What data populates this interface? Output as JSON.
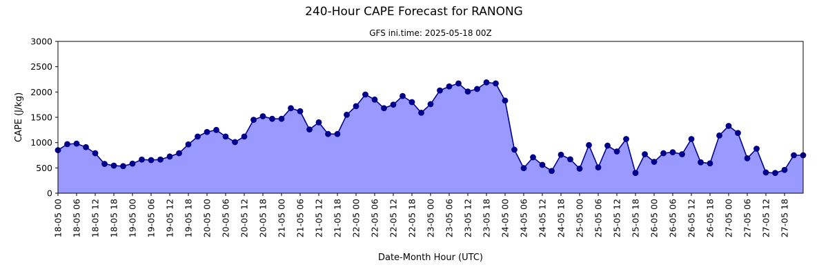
{
  "chart_data": {
    "type": "area",
    "title": "240-Hour CAPE Forecast for RANONG",
    "subtitle": "GFS ini.time: 2025-05-18 00Z",
    "xlabel": "Date-Month Hour (UTC)",
    "ylabel": "CAPE (J/kg)",
    "ylim": [
      0,
      3000
    ],
    "yticks": [
      0,
      500,
      1000,
      1500,
      2000,
      2500,
      3000
    ],
    "grid": false,
    "legend": "none",
    "colors": {
      "line": "#00008b",
      "marker": "#00008b",
      "fill": "#9999ff"
    },
    "x_interval_hours": 3,
    "x": [
      "18-05 00",
      "18-05 03",
      "18-05 06",
      "18-05 09",
      "18-05 12",
      "18-05 15",
      "18-05 18",
      "18-05 21",
      "19-05 00",
      "19-05 03",
      "19-05 06",
      "19-05 09",
      "19-05 12",
      "19-05 15",
      "19-05 18",
      "19-05 21",
      "20-05 00",
      "20-05 03",
      "20-05 06",
      "20-05 09",
      "20-05 12",
      "20-05 15",
      "20-05 18",
      "20-05 21",
      "21-05 00",
      "21-05 03",
      "21-05 06",
      "21-05 09",
      "21-05 12",
      "21-05 15",
      "21-05 18",
      "21-05 21",
      "22-05 00",
      "22-05 03",
      "22-05 06",
      "22-05 09",
      "22-05 12",
      "22-05 15",
      "22-05 18",
      "22-05 21",
      "23-05 00",
      "23-05 03",
      "23-05 06",
      "23-05 09",
      "23-05 12",
      "23-05 15",
      "23-05 18",
      "23-05 21",
      "24-05 00",
      "24-05 03",
      "24-05 06",
      "24-05 09",
      "24-05 12",
      "24-05 15",
      "24-05 18",
      "24-05 21",
      "25-05 00",
      "25-05 03",
      "25-05 06",
      "25-05 09",
      "25-05 12",
      "25-05 15",
      "25-05 18",
      "25-05 21",
      "26-05 00",
      "26-05 03",
      "26-05 06",
      "26-05 09",
      "26-05 12",
      "26-05 15",
      "26-05 18",
      "26-05 21",
      "27-05 00",
      "27-05 03",
      "27-05 06",
      "27-05 09",
      "27-05 12",
      "27-05 15",
      "27-05 18",
      "27-05 21",
      "28-05 00"
    ],
    "xticklabels": [
      "18-05 00",
      "18-05 06",
      "18-05 12",
      "18-05 18",
      "19-05 00",
      "19-05 06",
      "19-05 12",
      "19-05 18",
      "20-05 00",
      "20-05 06",
      "20-05 12",
      "20-05 18",
      "21-05 00",
      "21-05 06",
      "21-05 12",
      "21-05 18",
      "22-05 00",
      "22-05 06",
      "22-05 12",
      "22-05 18",
      "23-05 00",
      "23-05 06",
      "23-05 12",
      "23-05 18",
      "24-05 00",
      "24-05 06",
      "24-05 12",
      "24-05 18",
      "25-05 00",
      "25-05 06",
      "25-05 12",
      "25-05 18",
      "26-05 00",
      "26-05 06",
      "26-05 12",
      "26-05 18",
      "27-05 00",
      "27-05 06",
      "27-05 12",
      "27-05 18"
    ],
    "values": [
      850,
      970,
      980,
      910,
      790,
      580,
      545,
      535,
      585,
      665,
      655,
      665,
      725,
      790,
      965,
      1120,
      1210,
      1250,
      1120,
      1010,
      1120,
      1450,
      1520,
      1470,
      1470,
      1680,
      1620,
      1260,
      1400,
      1170,
      1170,
      1550,
      1720,
      1950,
      1850,
      1680,
      1750,
      1920,
      1800,
      1590,
      1760,
      2030,
      2110,
      2170,
      2010,
      2060,
      2190,
      2170,
      1830,
      860,
      495,
      710,
      560,
      440,
      760,
      670,
      485,
      950,
      510,
      940,
      825,
      1070,
      400,
      770,
      620,
      790,
      810,
      770,
      1070,
      610,
      590,
      1140,
      1330,
      1190,
      690,
      880,
      410,
      400,
      460,
      750,
      750
    ]
  }
}
